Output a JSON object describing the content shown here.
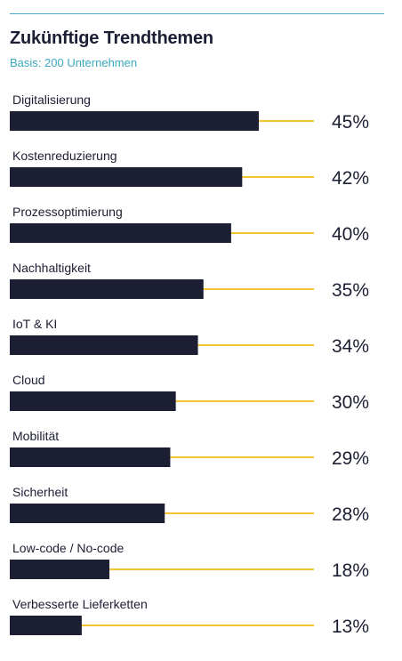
{
  "chart_data": {
    "type": "bar",
    "title": "Zukünftige Trendthemen",
    "subtitle": "Basis: 200 Unternehmen",
    "categories": [
      "Digitalisierung",
      "Kostenreduzierung",
      "Prozessoptimierung",
      "Nachhaltigkeit",
      "IoT & KI",
      "Cloud",
      "Mobilität",
      "Sicherheit",
      "Low-code / No-code",
      "Verbesserte Lieferketten"
    ],
    "values": [
      45,
      42,
      40,
      35,
      34,
      30,
      29,
      28,
      18,
      13
    ],
    "value_labels": [
      "45%",
      "42%",
      "40%",
      "35%",
      "34%",
      "30%",
      "29%",
      "28%",
      "18%",
      "13%"
    ],
    "unit": "%",
    "xlim": [
      0,
      100
    ],
    "orientation": "horizontal",
    "grid": false,
    "legend": "none",
    "colors": {
      "bar": "#1c1e33",
      "guide_line": "#f2c530",
      "rule": "#4aa8c8",
      "subtitle": "#3aa9bf"
    }
  }
}
